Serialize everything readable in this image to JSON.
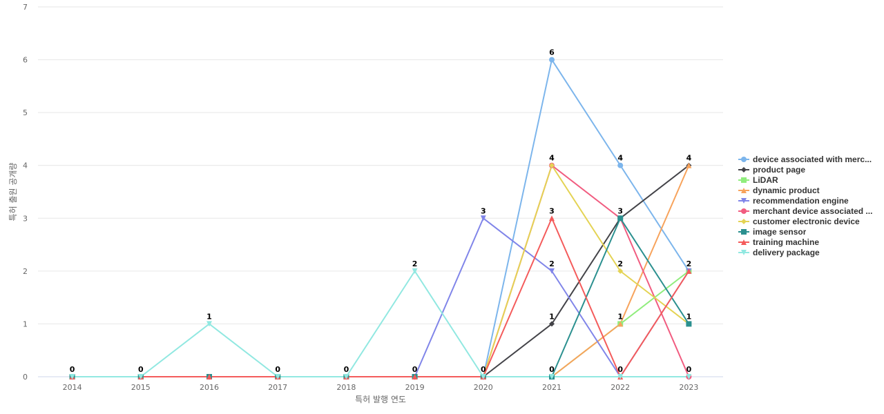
{
  "chart_data": {
    "type": "line",
    "xlabel": "특허 발행 연도",
    "ylabel": "특허 출원 공개량",
    "categories": [
      "2014",
      "2015",
      "2016",
      "2017",
      "2018",
      "2019",
      "2020",
      "2021",
      "2022",
      "2023"
    ],
    "ylim": [
      0,
      7
    ],
    "yticks": [
      0,
      1,
      2,
      3,
      4,
      5,
      6,
      7
    ],
    "grid": true,
    "legend_position": "right",
    "series": [
      {
        "name": "device associated with merc...",
        "color": "#7cb5ec",
        "marker": "circle",
        "values": [
          0,
          0,
          0,
          0,
          0,
          0,
          0,
          6,
          4,
          2
        ]
      },
      {
        "name": "product page",
        "color": "#434348",
        "marker": "diamond",
        "values": [
          0,
          0,
          0,
          0,
          0,
          0,
          0,
          1,
          3,
          4
        ]
      },
      {
        "name": "LiDAR",
        "color": "#90ed7d",
        "marker": "square",
        "values": [
          0,
          0,
          0,
          0,
          0,
          0,
          0,
          0,
          1,
          2
        ]
      },
      {
        "name": "dynamic product",
        "color": "#f7a35c",
        "marker": "triangle",
        "values": [
          0,
          0,
          0,
          0,
          0,
          0,
          0,
          0,
          1,
          4
        ]
      },
      {
        "name": "recommendation engine",
        "color": "#8085e9",
        "marker": "triangle-down",
        "values": [
          0,
          0,
          0,
          0,
          0,
          0,
          3,
          2,
          0,
          2
        ]
      },
      {
        "name": "merchant device associated ...",
        "color": "#f15c80",
        "marker": "circle",
        "values": [
          0,
          0,
          0,
          0,
          0,
          0,
          0,
          4,
          3,
          0
        ]
      },
      {
        "name": "customer electronic device",
        "color": "#e4d354",
        "marker": "diamond",
        "values": [
          0,
          0,
          0,
          0,
          0,
          0,
          0,
          4,
          2,
          1
        ]
      },
      {
        "name": "image sensor",
        "color": "#2b908f",
        "marker": "square",
        "values": [
          0,
          0,
          0,
          0,
          0,
          0,
          0,
          0,
          3,
          1
        ]
      },
      {
        "name": "training machine",
        "color": "#f45b5b",
        "marker": "triangle",
        "values": [
          0,
          0,
          0,
          0,
          0,
          0,
          0,
          3,
          0,
          2
        ]
      },
      {
        "name": "delivery package",
        "color": "#91e8e1",
        "marker": "triangle-down",
        "values": [
          0,
          0,
          1,
          0,
          0,
          2,
          0,
          0,
          0,
          0
        ]
      }
    ],
    "data_labels": [
      0,
      0,
      1,
      0,
      0,
      0,
      0,
      6,
      4,
      4
    ]
  }
}
